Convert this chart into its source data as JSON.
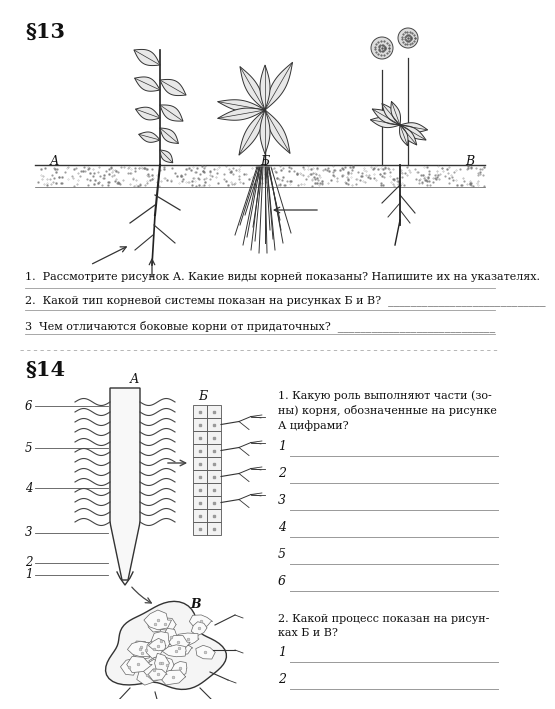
{
  "bg_color": "#ffffff",
  "sec1_header": "§13",
  "sec2_header": "§14",
  "q1": "1.  Рассмотрите рисунок А. Какие виды корней показаны? Напишите их на указателях.",
  "q2": "2.  Какой тип корневой системы показан на рисунках Б и В?  ____________________________",
  "q3": "3  Чем отличаются боковые корни от придаточных?  ____________________________",
  "s14_q1": "1. Какую роль выполняют части (зо-\nны) корня, обозначенные на рисунке\nА цифрами?",
  "s14_q2": "2. Какой процесс показан на рисун-\nках Б и В?",
  "labels_ABC": [
    "А",
    "Б",
    "В"
  ],
  "numbers_16": [
    "1",
    "2",
    "3",
    "4",
    "5",
    "6"
  ],
  "numbers_12": [
    "1",
    "2"
  ]
}
